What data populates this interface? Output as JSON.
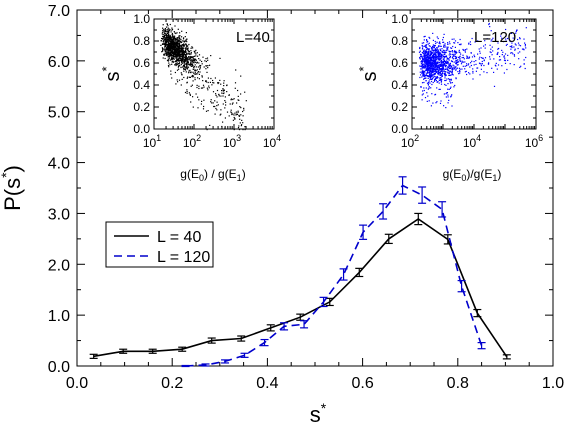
{
  "chart_data": [
    {
      "type": "line",
      "xlabel_base": "s",
      "xlabel_sup": "*",
      "ylabel_base": "P(s",
      "ylabel_sup": "*",
      "ylabel_close": ")",
      "xlim": [
        0.0,
        1.0
      ],
      "ylim": [
        0.0,
        7.0
      ],
      "xticks": [
        0.0,
        0.2,
        0.4,
        0.6,
        0.8,
        1.0
      ],
      "xtick_labels": [
        "0.0",
        "0.2",
        "0.4",
        "0.6",
        "0.8",
        "1.0"
      ],
      "yticks": [
        0.0,
        1.0,
        2.0,
        3.0,
        4.0,
        5.0,
        6.0,
        7.0
      ],
      "ytick_labels": [
        "0.0",
        "1.0",
        "2.0",
        "3.0",
        "4.0",
        "5.0",
        "6.0",
        "7.0"
      ],
      "legend_position": "center-left",
      "series": [
        {
          "name": "L = 40",
          "color": "#000000",
          "style": "solid",
          "x": [
            0.035,
            0.097,
            0.159,
            0.221,
            0.283,
            0.345,
            0.407,
            0.469,
            0.531,
            0.593,
            0.655,
            0.717,
            0.779,
            0.841,
            0.903
          ],
          "y": [
            0.19,
            0.29,
            0.29,
            0.33,
            0.5,
            0.54,
            0.75,
            0.96,
            1.26,
            1.84,
            2.5,
            2.89,
            2.49,
            1.04,
            0.18
          ],
          "err": [
            0.04,
            0.04,
            0.04,
            0.04,
            0.05,
            0.05,
            0.06,
            0.06,
            0.07,
            0.08,
            0.09,
            0.11,
            0.09,
            0.07,
            0.04
          ]
        },
        {
          "name": "L = 120",
          "color": "#0000cc",
          "style": "dashed",
          "x": [
            0.228,
            0.27,
            0.311,
            0.352,
            0.394,
            0.435,
            0.477,
            0.518,
            0.56,
            0.601,
            0.643,
            0.684,
            0.725,
            0.767,
            0.808,
            0.85
          ],
          "y": [
            0.0,
            0.02,
            0.09,
            0.21,
            0.46,
            0.78,
            0.82,
            1.26,
            1.8,
            2.63,
            3.04,
            3.55,
            3.36,
            3.08,
            1.57,
            0.4
          ],
          "err": [
            0.01,
            0.02,
            0.03,
            0.04,
            0.06,
            0.07,
            0.07,
            0.09,
            0.11,
            0.14,
            0.15,
            0.17,
            0.16,
            0.15,
            0.11,
            0.06
          ]
        }
      ]
    },
    {
      "type": "scatter",
      "label": "L=40",
      "ylabel_base": "s",
      "ylabel_sup": "*",
      "xlabel_parts": [
        "g(E",
        "0",
        ") / g(E",
        "1",
        ")"
      ],
      "x_scale": "log",
      "xlim": [
        10,
        10000
      ],
      "ylim": [
        0.0,
        1.0
      ],
      "xtick_exponents": [
        "1",
        "2",
        "3",
        "4"
      ],
      "ytick_labels": [
        "0.0",
        "0.2",
        "0.4",
        "0.6",
        "0.8",
        "1.0"
      ],
      "point_color": "#000000"
    },
    {
      "type": "scatter",
      "label": "L=120",
      "ylabel_base": "s",
      "ylabel_sup": "*",
      "xlabel_parts": [
        "g(E",
        "0",
        ")/g(E",
        "1",
        ")"
      ],
      "x_scale": "log",
      "xlim": [
        100,
        1000000
      ],
      "ylim": [
        0.0,
        1.0
      ],
      "xtick_exponents": [
        "2",
        "4",
        "6"
      ],
      "ytick_labels": [
        "0.0",
        "0.2",
        "0.4",
        "0.6",
        "0.8",
        "1.0"
      ],
      "point_color": "#0000ff"
    }
  ]
}
